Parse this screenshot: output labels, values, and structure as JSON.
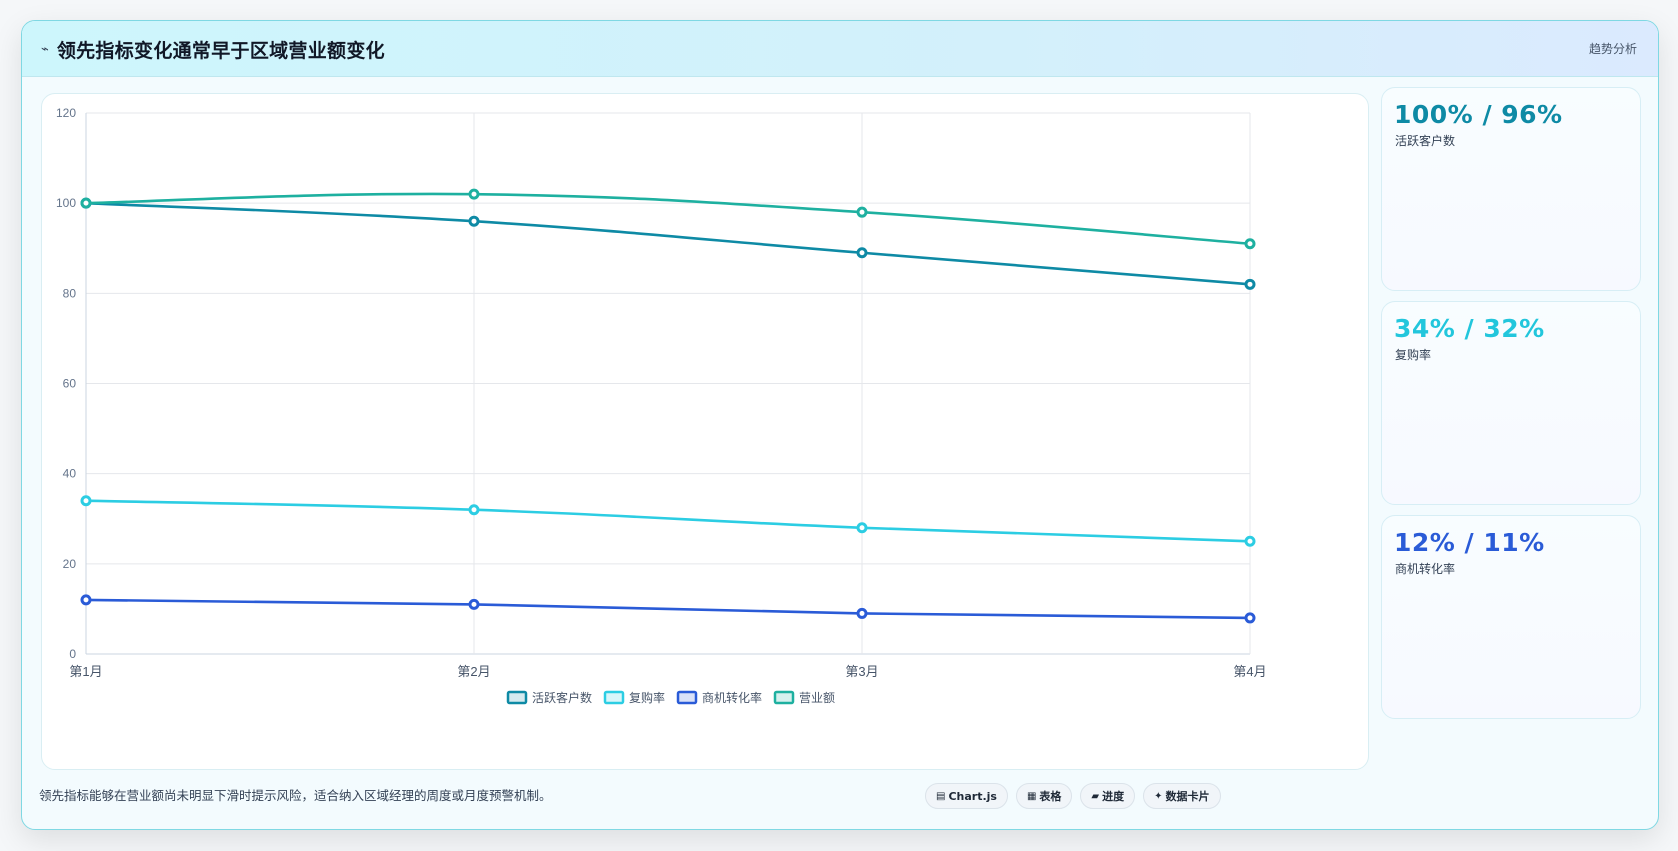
{
  "header": {
    "icon": "trend-icon",
    "icon_glyph": "⌁",
    "title": "领先指标变化通常早于区域营业额变化",
    "tag": "趋势分析"
  },
  "chart_data": {
    "type": "line",
    "categories": [
      "第1月",
      "第2月",
      "第3月",
      "第4月"
    ],
    "ylim": [
      0,
      120
    ],
    "yticks": [
      0,
      20,
      40,
      60,
      80,
      100,
      120
    ],
    "grid": true,
    "legend_position": "bottom",
    "series": [
      {
        "name": "活跃客户数",
        "color": "#0e8aa5",
        "values": [
          100,
          96,
          89,
          82
        ]
      },
      {
        "name": "复购率",
        "color": "#2ccde3",
        "values": [
          34,
          32,
          28,
          25
        ]
      },
      {
        "name": "商机转化率",
        "color": "#2a5bd7",
        "values": [
          12,
          11,
          9,
          8
        ]
      },
      {
        "name": "营业额",
        "color": "#1eb0a0",
        "values": [
          100,
          102,
          98,
          91
        ]
      }
    ]
  },
  "kpis": [
    {
      "value": "100% / 96%",
      "label": "活跃客户数",
      "color": "#0e8aa5"
    },
    {
      "value": "34% / 32%",
      "label": "复购率",
      "color": "#22c6dc"
    },
    {
      "value": "12% / 11%",
      "label": "商机转化率",
      "color": "#2a5bd7"
    }
  ],
  "footnote": "领先指标能够在营业额尚未明显下滑时提示风险，适合纳入区域经理的周度或月度预警机制。",
  "chips": [
    {
      "icon": "chart-icon",
      "glyph": "▤",
      "label": "Chart.js"
    },
    {
      "icon": "table-icon",
      "glyph": "▦",
      "label": "表格"
    },
    {
      "icon": "progress-icon",
      "glyph": "▰",
      "label": "进度"
    },
    {
      "icon": "sparkle-icon",
      "glyph": "✦",
      "label": "数据卡片"
    }
  ]
}
